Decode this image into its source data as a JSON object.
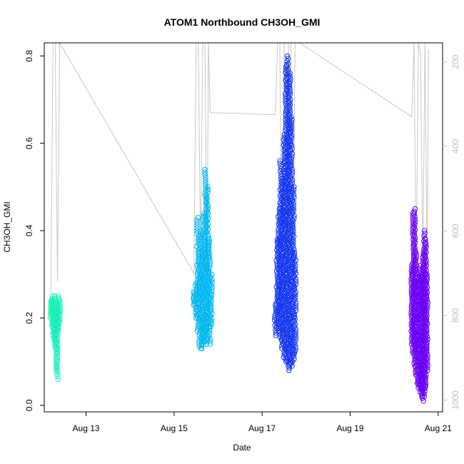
{
  "chart_data": {
    "type": "scatter",
    "title": "ATOM1 Northbound CH3OH_GMI",
    "xlabel": "Date",
    "ylabel": "CH3OH_GMI",
    "x_ticks": [
      "Aug 13",
      "Aug 15",
      "Aug 17",
      "Aug 19",
      "Aug 21"
    ],
    "x_tick_days": [
      13,
      15,
      17,
      19,
      21
    ],
    "xlim_days": [
      12.05,
      21.1
    ],
    "y_ticks": [
      "0.0",
      "0.2",
      "0.4",
      "0.6",
      "0.8"
    ],
    "y_tick_values": [
      0.0,
      0.2,
      0.4,
      0.6,
      0.8
    ],
    "ylim": [
      -0.015,
      0.83
    ],
    "y2_ticks": [
      "200",
      "400",
      "600",
      "800",
      "1000"
    ],
    "y2_tick_values": [
      200,
      400,
      600,
      800,
      1000
    ],
    "y2lim": [
      1028,
      155
    ],
    "y2_reversed": true,
    "y2_color": "#bdbdbd",
    "grid": false,
    "series": [
      {
        "date": "Aug 12",
        "color": "#19f0b8",
        "x_range": [
          12.2,
          12.4
        ],
        "y_range": [
          0.06,
          0.25
        ],
        "y_low": [
          0.2,
          0.18,
          0.16,
          0.15,
          0.13,
          0.08,
          0.06,
          0.17,
          0.19
        ],
        "y_high": [
          0.24,
          0.25,
          0.24,
          0.25,
          0.24,
          0.23,
          0.22,
          0.25,
          0.24
        ]
      },
      {
        "date": "Aug 15",
        "color": "#00b7f0",
        "x_range": [
          15.45,
          15.85
        ],
        "y_range": [
          0.13,
          0.54
        ],
        "y_low": [
          0.23,
          0.2,
          0.17,
          0.13,
          0.13,
          0.14,
          0.14,
          0.15,
          0.14,
          0.18
        ],
        "y_high": [
          0.26,
          0.28,
          0.43,
          0.4,
          0.35,
          0.44,
          0.54,
          0.5,
          0.38,
          0.3
        ]
      },
      {
        "date": "Aug 17",
        "color": "#1436f0",
        "x_range": [
          17.3,
          17.75
        ],
        "y_range": [
          0.08,
          0.8
        ],
        "y_low": [
          0.16,
          0.18,
          0.17,
          0.15,
          0.13,
          0.11,
          0.1,
          0.09,
          0.08,
          0.09,
          0.1,
          0.12
        ],
        "y_high": [
          0.23,
          0.38,
          0.45,
          0.56,
          0.52,
          0.62,
          0.78,
          0.8,
          0.76,
          0.66,
          0.5,
          0.35
        ]
      },
      {
        "date": "Aug 20",
        "color": "#6a00f5",
        "x_range": [
          20.4,
          20.75
        ],
        "y_range": [
          0.01,
          0.45
        ],
        "y_low": [
          0.14,
          0.12,
          0.09,
          0.07,
          0.05,
          0.04,
          0.03,
          0.02,
          0.01,
          0.02,
          0.04,
          0.08
        ],
        "y_high": [
          0.32,
          0.44,
          0.45,
          0.35,
          0.3,
          0.28,
          0.32,
          0.3,
          0.35,
          0.4,
          0.38,
          0.3
        ]
      }
    ],
    "altitude_trace": {
      "color": "#c8c8c8",
      "points": [
        [
          12.2,
          750
        ],
        [
          12.25,
          150
        ],
        [
          12.3,
          150
        ],
        [
          12.35,
          720
        ],
        [
          12.4,
          150
        ],
        [
          15.45,
          700
        ],
        [
          15.5,
          150
        ],
        [
          15.55,
          150
        ],
        [
          15.6,
          650
        ],
        [
          15.65,
          150
        ],
        [
          15.7,
          150
        ],
        [
          15.75,
          700
        ],
        [
          15.78,
          150
        ],
        [
          15.82,
          320
        ],
        [
          17.3,
          325
        ],
        [
          17.35,
          150
        ],
        [
          17.4,
          150
        ],
        [
          17.45,
          700
        ],
        [
          17.5,
          150
        ],
        [
          17.55,
          700
        ],
        [
          17.6,
          150
        ],
        [
          17.65,
          150
        ],
        [
          17.7,
          700
        ],
        [
          17.75,
          150
        ],
        [
          17.85,
          155
        ],
        [
          20.4,
          330
        ],
        [
          20.45,
          150
        ],
        [
          20.5,
          700
        ],
        [
          20.55,
          150
        ],
        [
          20.6,
          180
        ],
        [
          20.65,
          700
        ],
        [
          20.7,
          150
        ],
        [
          20.75,
          700
        ],
        [
          20.78,
          170
        ]
      ]
    }
  }
}
